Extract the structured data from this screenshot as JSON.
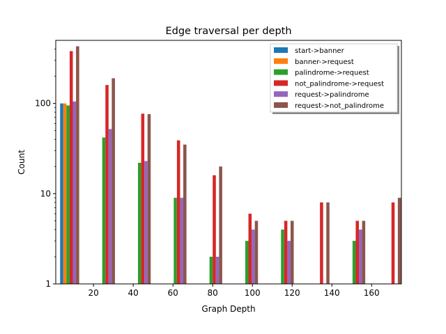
{
  "chart_data": {
    "type": "bar",
    "title": "Edge traversal per depth",
    "xlabel": "Graph Depth",
    "ylabel": "Count",
    "yscale": "log",
    "ylim": [
      1,
      500
    ],
    "xlim": [
      1,
      175
    ],
    "yticks": [
      1,
      10,
      100
    ],
    "ytick_labels": [
      "1",
      "10",
      "100"
    ],
    "xticks": [
      20,
      40,
      60,
      80,
      100,
      120,
      140,
      160
    ],
    "xtick_labels": [
      "20",
      "40",
      "60",
      "80",
      "100",
      "120",
      "140",
      "160"
    ],
    "legend_position": "top-right",
    "grid": false,
    "depths": [
      8,
      26,
      44,
      62,
      80,
      98,
      116,
      134,
      152,
      170
    ],
    "series": [
      {
        "name": "start->banner",
        "color": "#1f77b4",
        "values": [
          100,
          null,
          null,
          null,
          null,
          null,
          null,
          null,
          null,
          null
        ]
      },
      {
        "name": "banner->request",
        "color": "#ff7f0e",
        "values": [
          100,
          null,
          null,
          null,
          null,
          null,
          null,
          null,
          null,
          null
        ]
      },
      {
        "name": "palindrome->request",
        "color": "#2ca02c",
        "values": [
          95,
          42,
          22,
          9,
          2,
          3,
          4,
          1,
          3,
          1
        ]
      },
      {
        "name": "not_palindrome->request",
        "color": "#d62728",
        "values": [
          380,
          160,
          77,
          39,
          16,
          6,
          5,
          8,
          5,
          8
        ]
      },
      {
        "name": "request->palindrome",
        "color": "#9467bd",
        "values": [
          105,
          52,
          23,
          9,
          2,
          4,
          3,
          1,
          4,
          null
        ]
      },
      {
        "name": "request->not_palindrome",
        "color": "#8c564b",
        "values": [
          430,
          190,
          76,
          35,
          20,
          5,
          5,
          8,
          5,
          9
        ]
      }
    ]
  }
}
